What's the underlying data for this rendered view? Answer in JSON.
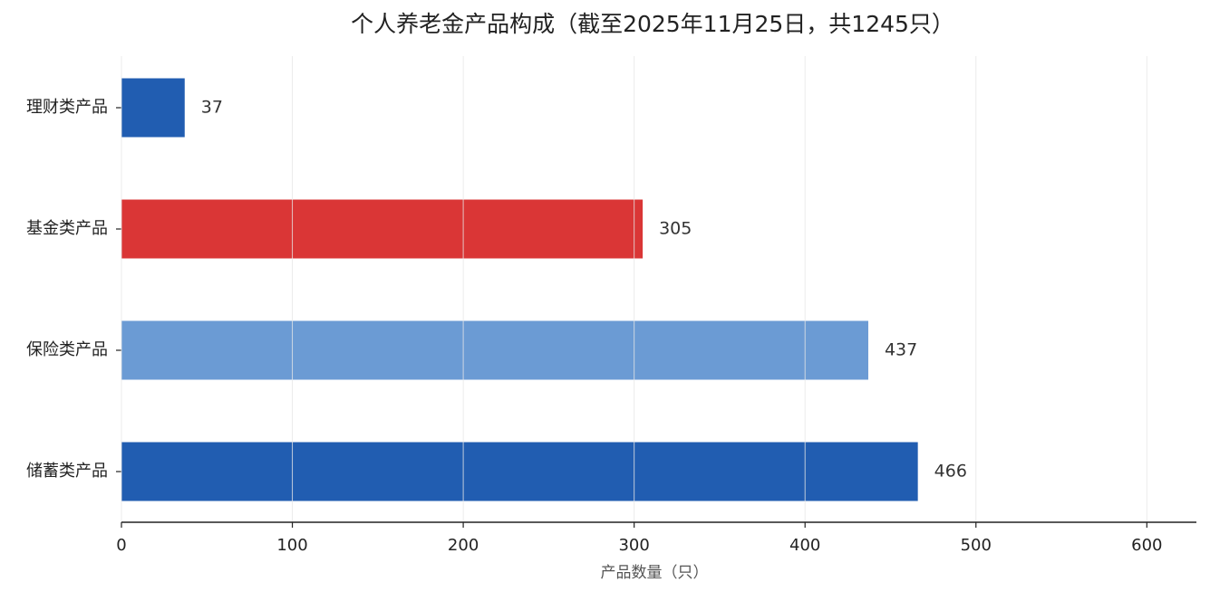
{
  "chart_data": {
    "type": "barh",
    "title": "个人养老金产品构成（截至2025年11月25日，共1245只）",
    "categories": [
      "理财类产品",
      "基金类产品",
      "保险类产品",
      "储蓄类产品"
    ],
    "values": [
      37,
      305,
      437,
      466
    ],
    "colors": [
      "#215db1",
      "#da3636",
      "#6b9bd4",
      "#215db1"
    ],
    "x_label": "产品数量（只）",
    "xlim": [
      0,
      629
    ],
    "xticks": [
      0,
      100,
      200,
      300,
      400,
      500,
      600
    ],
    "grid": true
  }
}
